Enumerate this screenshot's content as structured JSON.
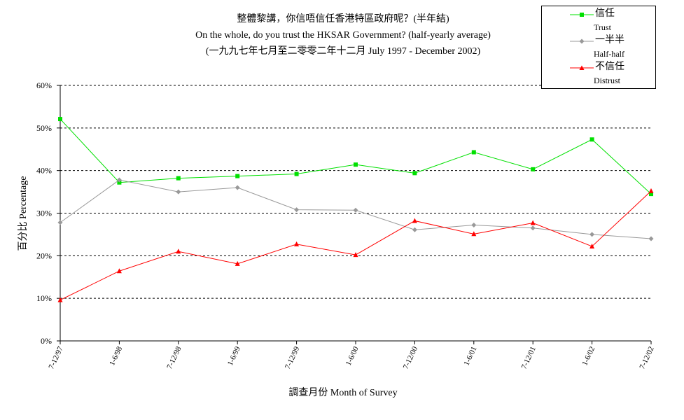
{
  "chart_data": {
    "type": "line",
    "title": "整體黎講，你信唔信任香港特區政府呢？(半年結)",
    "subtitle": "On the whole, do you trust the HKSAR Government? (half-yearly average)",
    "subtitle2": "(一九九七年七月至二零零二年十二月 July 1997 - December 2002)",
    "xlabel": "調查月份 Month of Survey",
    "ylabel": "百分比 Percentage",
    "categories": [
      "7-12/97",
      "1-6/98",
      "7-12/98",
      "1-6/99",
      "7-12/99",
      "1-6/00",
      "7-12/00",
      "1-6/01",
      "7-12/01",
      "1-6/02",
      "7-12/02"
    ],
    "yticks": [
      "0%",
      "10%",
      "20%",
      "30%",
      "40%",
      "50%",
      "60%"
    ],
    "ylim": [
      0,
      60
    ],
    "grid": true,
    "legend_position": "top-right",
    "series": [
      {
        "name": "信任",
        "sub": "Trust",
        "color": "#00e000",
        "marker": "square",
        "values": [
          52.1,
          37.2,
          38.2,
          38.7,
          39.2,
          41.4,
          39.4,
          44.3,
          40.3,
          47.3,
          34.5
        ]
      },
      {
        "name": "一半半",
        "sub": "Half-half",
        "color": "#999999",
        "marker": "diamond",
        "values": [
          27.8,
          37.8,
          35.0,
          36.0,
          30.8,
          30.7,
          26.1,
          27.2,
          26.5,
          25.0,
          24.0
        ]
      },
      {
        "name": "不信任",
        "sub": "Distrust",
        "color": "#ff0000",
        "marker": "triangle",
        "values": [
          9.6,
          16.4,
          21.0,
          18.1,
          22.7,
          20.2,
          28.2,
          25.1,
          27.7,
          22.2,
          35.2
        ]
      }
    ]
  }
}
